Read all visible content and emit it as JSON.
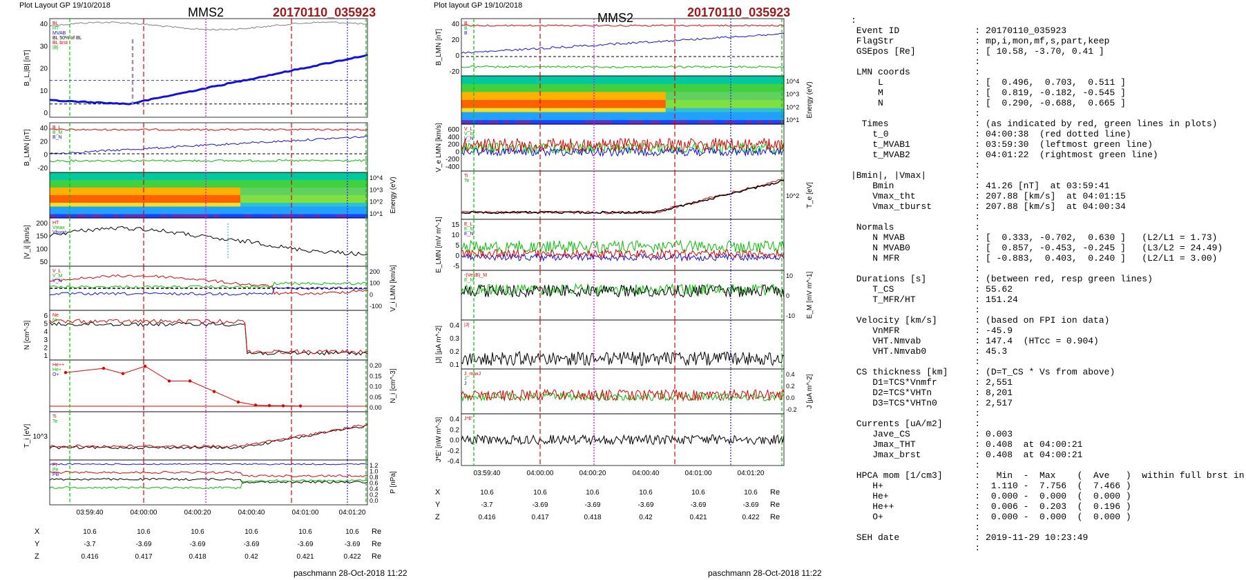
{
  "colors": {
    "title_red": "#a01818",
    "bz_blue": "#1010e0",
    "red": "#e00000",
    "green": "#00c000",
    "black": "#000000",
    "magenta": "#e000e0",
    "cyan": "#00b0e0"
  },
  "left": {
    "header": "Plot Layout GP 19/10/2018",
    "satellite": "MMS2",
    "event": "20170110_035923",
    "footer": "paschmann 28-Oct-2018 11:22",
    "time_ticks": [
      "03:59:40",
      "04:00:00",
      "04:00:20",
      "04:00:40",
      "04:01:00",
      "04:01:20"
    ],
    "position_labels": [
      "X",
      "Y",
      "Z"
    ],
    "position_unit": "Re",
    "positions": {
      "X": [
        "10.6",
        "10.6",
        "10.6",
        "10.6",
        "10.6",
        "10.6"
      ],
      "Y": [
        "-3.7",
        "-3.69",
        "-3.69",
        "-3.69",
        "-3.69",
        "-3.69"
      ],
      "Z": [
        "0.416",
        "0.417",
        "0.418",
        "0.42",
        "0.421",
        "0.422"
      ]
    },
    "panels": [
      {
        "ylabel": "B_L,|B| [nT]",
        "ticks_left": [
          "40",
          "30",
          "20",
          "10",
          "0"
        ],
        "legend": [
          "BL",
          "HT",
          "MVAB",
          "BL 50% of BL",
          "BL brst",
          "|B|"
        ]
      },
      {
        "ylabel": "B_LMN [nT]",
        "ticks_left": [
          "40",
          "20",
          "0",
          "-20"
        ],
        "legend": [
          "B_L",
          "B_M",
          "B_N"
        ]
      },
      {
        "ylabel": "",
        "ticks_right": [
          "10^4",
          "10^3",
          "10^2",
          "10^1"
        ],
        "right_label": "Energy (eV)"
      },
      {
        "ylabel": "|V_i| [km/s]",
        "ticks_left": [
          "200",
          "150",
          "100",
          "50"
        ],
        "legend": [
          "HT",
          "Vmax",
          "Vburst"
        ]
      },
      {
        "ylabel": "",
        "ticks_right": [
          "200",
          "100",
          "0",
          "-100"
        ],
        "right_label": "V_i LMN [km/s]",
        "legend": [
          "V_L",
          "V_M",
          "V_N"
        ]
      },
      {
        "ylabel": "N [cm^-3]",
        "ticks_left": [
          "6",
          "5",
          "4",
          "3",
          "2",
          "1"
        ],
        "legend": [
          "Ne",
          "Ni"
        ]
      },
      {
        "ylabel": "",
        "ticks_right": [
          "0.20",
          "0.15",
          "0.10",
          "0.05",
          "0.00"
        ],
        "right_label": "N_i [cm^-3]",
        "legend": [
          "He++",
          "He+",
          "O+"
        ]
      },
      {
        "ylabel": "T_i [eV]",
        "ticks_left": [
          "10^3"
        ],
        "legend": [
          "Ti",
          "Te"
        ]
      },
      {
        "ylabel": "",
        "ticks_right": [
          "1.2",
          "1.0",
          "0.8",
          "0.6",
          "0.4",
          "0.2",
          "0.0"
        ],
        "right_label": "P [nPa]",
        "legend": [
          "Pi",
          "Pe",
          "PB"
        ]
      }
    ]
  },
  "right": {
    "header": "Plot layout GP 19/10/2018",
    "satellite": "MMS2",
    "event": "20170110_035923",
    "footer": "paschmann 28-Oct-2018 11:22",
    "time_ticks": [
      "03:59:40",
      "04:00:00",
      "04:00:20",
      "04:00:40",
      "04:01:00",
      "04:01:20"
    ],
    "position_labels": [
      "X",
      "Y",
      "Z"
    ],
    "position_unit": "Re",
    "positions": {
      "X": [
        "10.6",
        "10.6",
        "10.6",
        "10.6",
        "10.6",
        "10.6"
      ],
      "Y": [
        "-3.7",
        "-3.69",
        "-3.69",
        "-3.69",
        "-3.69",
        "-3.69"
      ],
      "Z": [
        "0.416",
        "0.417",
        "0.418",
        "0.42",
        "0.421",
        "0.422"
      ]
    },
    "panels": [
      {
        "ylabel": "B_LMN [nT]",
        "ticks_left": [
          "40",
          "20",
          "0",
          "-20"
        ],
        "legend": [
          "B",
          "B",
          "B"
        ]
      },
      {
        "ylabel": "",
        "ticks_right": [
          "10^4",
          "10^3",
          "10^2",
          "10^1"
        ],
        "right_label": "Energy (eV)"
      },
      {
        "ylabel": "V_e LMN [km/s]",
        "ticks_left": [
          "600",
          "400",
          "200",
          "0",
          "-200",
          "-400"
        ],
        "legend": [
          "V_L",
          "V_M",
          "V_N"
        ]
      },
      {
        "ylabel": "",
        "ticks_right": [
          "10^2"
        ],
        "right_label": "T_e [eV]",
        "legend": [
          "Ti",
          "Te"
        ]
      },
      {
        "ylabel": "E_LMN [mV m^-1]",
        "ticks_left": [
          "15",
          "10",
          "5",
          "0",
          "-5"
        ],
        "legend": [
          "E_L",
          "E_M",
          "E_N"
        ]
      },
      {
        "ylabel": "",
        "ticks_right": [
          "10",
          "0",
          "-10"
        ],
        "right_label": "E_M [mV m^-1]",
        "legend": [
          "-(VexB)_M",
          "E_M"
        ]
      },
      {
        "ylabel": "|J| [µA m^-2]",
        "ticks_left": [
          "0.4",
          "0.3",
          "0.2",
          "0.1"
        ],
        "legend": [
          "|J|"
        ]
      },
      {
        "ylabel": "",
        "ticks_right": [
          "0.4",
          "0.2",
          "0.0",
          "-0.2"
        ],
        "right_label": "J [µA m^-2]",
        "legend": [
          "J_maxJ",
          "J",
          "J"
        ]
      },
      {
        "ylabel": "J*E' [nW m^-3]",
        "ticks_left": [
          "0.4",
          "0.2",
          "0.0",
          "-0.2",
          "-0.4"
        ],
        "legend": [
          "J*E'"
        ]
      }
    ]
  },
  "chart_data": [
    {
      "type": "line",
      "title": "MMS2 20170110_035923",
      "xlabel": "",
      "x": [
        "03:59:40",
        "04:00:00",
        "04:00:20",
        "04:00:40",
        "04:01:00",
        "04:01:20"
      ],
      "series": [
        {
          "name": "BL",
          "values": [
            2,
            0,
            5,
            12,
            22,
            27
          ]
        },
        {
          "name": "|B|",
          "values": [
            43,
            44,
            44,
            44,
            45,
            44
          ]
        }
      ],
      "ylabel": "B_L,|B| [nT]",
      "ylim": [
        -5,
        45
      ]
    },
    {
      "type": "line",
      "title": "",
      "x": [
        "03:59:40",
        "04:00:00",
        "04:00:20",
        "04:00:40",
        "04:01:00",
        "04:01:20"
      ],
      "series": [
        {
          "name": "He++",
          "values": [
            0.16,
            0.145,
            0.12,
            0.07,
            0.005,
            0.001
          ]
        }
      ],
      "ylabel": "N_i [cm^-3]",
      "ylim": [
        0,
        0.2
      ]
    }
  ],
  "info": {
    "lines": [
      ":",
      " Event ID              : 20170110_035923",
      " FlagStr               : mp,i,mon,mf,s,part,keep",
      " GSEpos [Re]           : [ 10.58, -3.70, 0.41 ]",
      "                       :",
      " LMN coords            :",
      "     L                 : [  0.496,  0.703,  0.511 ]",
      "     M                 : [  0.819, -0.182, -0.545 ]",
      "     N                 : [  0.290, -0.688,  0.665 ]",
      "                       :",
      "  Times                : (as indicated by red, green lines in plots)",
      "    t_0                : 04:00:38  (red dotted line)",
      "    t_MVAB1            : 03:59:30  (leftmost green line)",
      "    t_MVAB2            : 04:01:22  (rightmost green line)",
      "                       :",
      "|Bmin|, |Vmax|         :",
      "    Bmin               : 41.26 [nT]  at 03:59:41",
      "    Vmax_tht           : 207.88 [km/s]  at 04:01:15",
      "    Vmax_tburst        : 207.88 [km/s]  at 04:00:34",
      "                       :",
      " Normals               :",
      "    N MVAB             : [  0.333, -0.702,  0.630 ]   (L2/L1 = 1.73)",
      "    N MVAB0            : [  0.857, -0.453, -0.245 ]   (L3/L2 = 24.49)",
      "    N MFR              : [ -0.883,  0.403,  0.240 ]   (L2/L1 = 3.00)",
      "                       :",
      " Durations [s]         : (between red, resp green lines)",
      "    T_CS               : 55.62",
      "    T_MFR/HT           : 151.24",
      "                       :",
      " Velocity [km/s]       : (based on FPI ion data)",
      "    VnMFR              : -45.9",
      "    VHT.Nmvab          : 147.4  (HTcc = 0.904)",
      "    VHT.Nmvab0         : 45.3",
      "                       :",
      " CS thickness [km]     : (D=T_CS * Vs from above)",
      "    D1=TCS*Vnmfr       : 2,551",
      "    D2=TCS*VHTn        : 8,201",
      "    D3=TCS*VHTn0       : 2,517",
      "                       :",
      " Currents [uA/m2]      :",
      "    Jave_CS            : 0.003",
      "    Jmax_THT           : 0.408  at 04:00:21",
      "    Jmax_brst          : 0.408  at 04:00:21",
      "                       :",
      " HPCA mom [1/cm3]      :   Min  -  Max    (  Ave   )  within full brst int",
      "    H+                 :  1.110 -  7.756  (  7.466 )",
      "    He+                :  0.000 -  0.000  (  0.000 )",
      "    He++               :  0.006 -  0.203  (  0.196 )",
      "    O+                 :  0.000 -  0.000  (  0.000 )",
      "                       :",
      " SEH date              : 2019-11-29 10:23:49",
      "                       :"
    ]
  }
}
